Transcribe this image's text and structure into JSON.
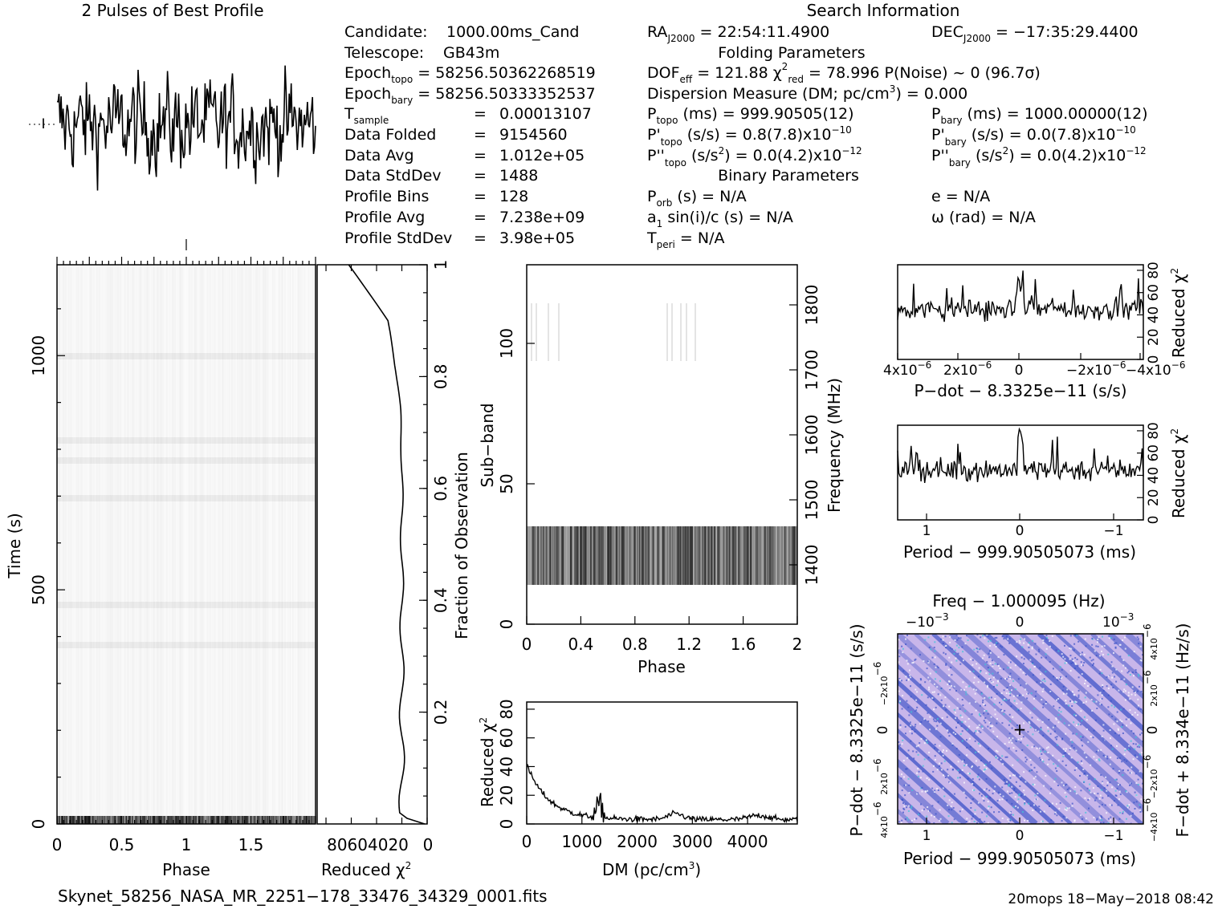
{
  "title": "2 Pulses of Best Profile",
  "search_info_title": "Search Information",
  "folding_title": "Folding Parameters",
  "binary_title": "Binary Parameters",
  "col1": [
    {
      "label": "Candidate:",
      "value": "1000.00ms_Cand"
    },
    {
      "label": "Telescope:",
      "value": "GB43m"
    },
    {
      "label": "Epoch",
      "sub": "topo",
      "value": "= 58256.5036226851 9"
    },
    {
      "label": "Epoch",
      "sub": "bary",
      "value": "= 58256.50333352537"
    },
    {
      "label": "T",
      "sub": "sample",
      "value": "=   0.00013107"
    },
    {
      "label": "Data Folded",
      "value": "=   9154560"
    },
    {
      "label": "Data Avg",
      "value": "=   1.012e+05"
    },
    {
      "label": "Data StdDev",
      "value": "=   1488"
    },
    {
      "label": "Profile Bins",
      "value": "=   128"
    },
    {
      "label": "Profile Avg",
      "value": "=   7.238e+09"
    },
    {
      "label": "Profile StdDev",
      "value": "=   3.98e+05"
    }
  ],
  "epoch_topo": "58256.50362268519",
  "ra_label": "RA",
  "ra_sub": "J2000",
  "ra_value": "= 22:54:11.4900",
  "dec_label": "DEC",
  "dec_sub": "J2000",
  "dec_value": "= −17:35:29.4400",
  "dof_line": "DOF",
  "dof_sub": "eff",
  "dof_value": "= 121.88",
  "chi_sub": "red",
  "chi_value": "= 78.996",
  "pnoise": "P(Noise) ~ 0",
  "sigma": "(96.7σ)",
  "dm_line": "Dispersion Measure (DM; pc/cm",
  "dm_value": ") = 0.000",
  "ptopo_label": "P",
  "ptopo_sub": "topo",
  "ptopo_value": "(ms) =  999.90505(12)",
  "pbary_value": "(ms) =  1000.00000(12)",
  "pdtopo_value": "(s/s) =  0.8(7.8)x10",
  "pdtopo_exp": "−10",
  "pdbary_value": "(s/s) = 0.0(7.8)x10",
  "pdbary_exp": "−10",
  "pddtopo_value": "(s/s",
  "pddtopo_tail": ") = 0.0(4.2)x10",
  "pdd_exp": "−12",
  "porb": "(s) = N/A",
  "a1sin": "sin(i)/c (s) = N/A",
  "tperi": "= N/A",
  "ecc": "e = N/A",
  "omega": "ω (rad) = N/A",
  "filename": "Skynet_58256_NASA_MR_2251−178_33476_34329_0001.fits",
  "footer_right": "20mops 18−May−2018 08:42",
  "axes": {
    "phase": "Phase",
    "time": "Time (s)",
    "reduced_chi2": "Reduced χ",
    "fraction": "Fraction of Observation",
    "subband": "Sub−band",
    "frequency": "Frequency (MHz)",
    "dm": "DM (pc/cm",
    "pdot": "P−dot − 8.3325e−11 (s/s)",
    "period": "Period − 999.90505073 (ms)",
    "freq_top": "Freq − 1.000095 (Hz)",
    "pdot_left": "P−dot − 8.3325e−11 (s/s)",
    "fdot_right": "F−dot + 8.334e−11 (Hz/s)"
  },
  "chart_data": [
    {
      "type": "line",
      "name": "profile",
      "title": "2 Pulses of Best Profile",
      "x_range": [
        0,
        2
      ],
      "description_values": "noisy profile"
    },
    {
      "type": "heatmap",
      "name": "time-phase",
      "xlabel": "Phase",
      "ylabel": "Time (s)",
      "xticks": [
        "0",
        "0.5",
        "1",
        "1.5"
      ],
      "yticks": [
        "0",
        "500",
        "1000"
      ],
      "ylim": [
        0,
        1150
      ]
    },
    {
      "type": "line",
      "name": "chi2-vs-time",
      "xlabel": "Reduced χ2",
      "xticks": [
        "80",
        "60",
        "40",
        "20",
        "0"
      ],
      "yticks_right": [
        "0.2",
        "0.4",
        "0.6",
        "0.8",
        "1"
      ]
    },
    {
      "type": "heatmap",
      "name": "subband-phase",
      "xlabel": "Phase",
      "ylabel": "Sub−band",
      "xticks": [
        "0",
        "0.4",
        "0.8",
        "1.2",
        "1.6",
        "2"
      ],
      "yticks": [
        "0",
        "50",
        "100"
      ],
      "yticks_right": [
        "1400",
        "1500",
        "1600",
        "1700",
        "1800"
      ]
    },
    {
      "type": "line",
      "name": "chi2-vs-dm",
      "xlabel": "DM (pc/cm3)",
      "ylabel": "Reduced χ2",
      "xticks": [
        "0",
        "1000",
        "2000",
        "3000",
        "4000"
      ],
      "yticks": [
        "0",
        "20",
        "40",
        "60",
        "80"
      ],
      "xlim": [
        0,
        4900
      ],
      "ylim": [
        0,
        85
      ]
    },
    {
      "type": "line",
      "name": "chi2-vs-pdot",
      "xlabel": "P−dot − 8.3325e−11 (s/s)",
      "ylabel": "Reduced χ2",
      "yticks": [
        "0",
        "20",
        "40",
        "60",
        "80"
      ],
      "ylim": [
        0,
        85
      ]
    },
    {
      "type": "line",
      "name": "chi2-vs-period",
      "xlabel": "Period − 999.90505073 (ms)",
      "ylabel": "Reduced χ2",
      "xticks": [
        "1",
        "0",
        "−1"
      ],
      "yticks": [
        "0",
        "20",
        "40",
        "60",
        "80"
      ],
      "ylim": [
        0,
        85
      ]
    },
    {
      "type": "heatmap",
      "name": "p-pdot-plane",
      "xlabel": "Period − 999.90505073 (ms)",
      "xticks": [
        "1",
        "0",
        "−1"
      ],
      "top_xticks": [
        "−10",
        "0",
        "10"
      ],
      "colors": {
        "bg": "#c8b6ea",
        "dark": "#3b52c8",
        "cyan": "#3ec6d8"
      }
    }
  ]
}
